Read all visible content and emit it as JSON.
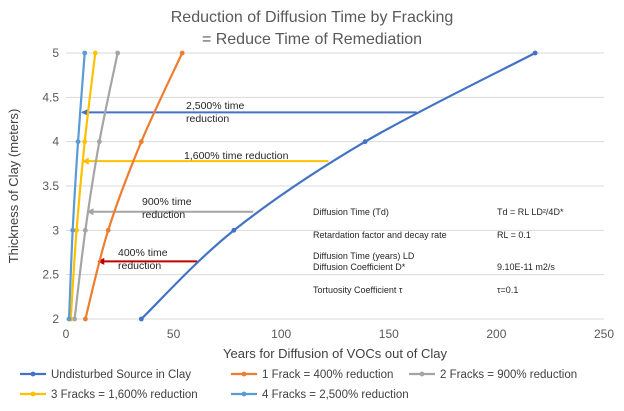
{
  "chart_data": {
    "type": "line",
    "title_lines": [
      "Reduction of Diffusion Time by Fracking",
      "= Reduce Time of Remediation"
    ],
    "xlabel": "Years for Diffusion  of VOCs out of Clay",
    "ylabel": "Thickness of Clay (meters)",
    "xlim": [
      0,
      250
    ],
    "ylim": [
      2,
      5
    ],
    "xticks": [
      "0",
      "50",
      "100",
      "150",
      "200",
      "250"
    ],
    "yticks": [
      "2",
      "2.5",
      "3",
      "3.5",
      "4",
      "4.5",
      "5"
    ],
    "x_tick_values": [
      0,
      50,
      100,
      150,
      200,
      250
    ],
    "y_tick_values": [
      2,
      2.5,
      3,
      3.5,
      4,
      4.5,
      5
    ],
    "grid": "horizontal",
    "legend_position": "bottom",
    "series": [
      {
        "name": "Undisturbed Source in Clay",
        "color": "#4472C4",
        "x": [
          35,
          78,
          139,
          218
        ],
        "y": [
          2,
          3,
          4,
          5
        ]
      },
      {
        "name": "1 Frack = 400% reduction",
        "color": "#ED7D31",
        "x": [
          9,
          19.6,
          35,
          54
        ],
        "y": [
          2,
          3,
          4,
          5
        ]
      },
      {
        "name": "2 Fracks = 900% reduction",
        "color": "#A5A5A5",
        "x": [
          4,
          9,
          15.5,
          24
        ],
        "y": [
          2,
          3,
          4,
          5
        ]
      },
      {
        "name": "3 Fracks = 1,600% reduction",
        "color": "#FFC000",
        "x": [
          2.2,
          4.9,
          8.7,
          13.6
        ],
        "y": [
          2,
          3,
          4,
          5
        ]
      },
      {
        "name": "4 Fracks = 2,500% reduction",
        "color": "#5B9BD5",
        "x": [
          1.4,
          3.1,
          5.6,
          8.7
        ],
        "y": [
          2,
          3,
          4,
          5
        ]
      }
    ],
    "annotations": [
      {
        "lines": [
          "2,500% time",
          "reduction"
        ],
        "color": "#4472C4",
        "arrow_from": [
          163,
          4.33
        ],
        "arrow_to": [
          7.5,
          4.33
        ]
      },
      {
        "lines": [
          "1,600% time reduction"
        ],
        "color": "#FFC000",
        "arrow_from": [
          122,
          3.78
        ],
        "arrow_to": [
          7.8,
          3.78
        ]
      },
      {
        "lines": [
          "900% time",
          "reduction"
        ],
        "color": "#A5A5A5",
        "arrow_from": [
          87,
          3.21
        ],
        "arrow_to": [
          10,
          3.21
        ]
      },
      {
        "lines": [
          "400% time",
          "reduction"
        ],
        "color": "#C00000",
        "arrow_from": [
          61,
          2.65
        ],
        "arrow_to": [
          15,
          2.65
        ]
      }
    ],
    "info_table": [
      {
        "label": "Diffusion Time (Td)",
        "value": "Td = RL LD²/4D*"
      },
      {
        "label": "Retardation factor and decay rate",
        "value": "RL = 0.1"
      },
      {
        "label": "Diffusion Time (years) LD",
        "value": ""
      },
      {
        "label": "Diffusion Coefficient D*",
        "value": "9.10E-11 m2/s"
      },
      {
        "label": "Tortuosity Coefficient τ",
        "value": "τ=0.1"
      }
    ]
  }
}
